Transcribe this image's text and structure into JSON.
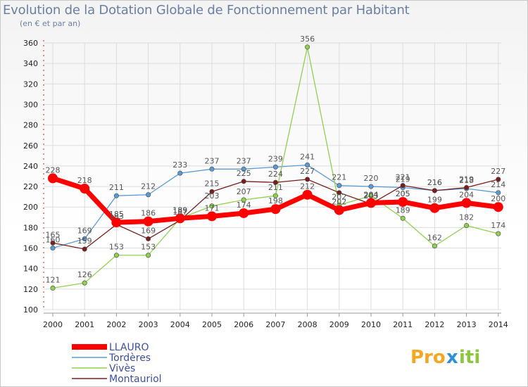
{
  "chart_data": {
    "type": "line",
    "title": "Evolution de la Dotation Globale de Fonctionnement par Habitant",
    "subtitle": "(en € et par an)",
    "x": [
      "2000",
      "2001",
      "2002",
      "2003",
      "2004",
      "2005",
      "2006",
      "2007",
      "2008",
      "2009",
      "2010",
      "2011",
      "2012",
      "2013",
      "2014"
    ],
    "ylim": [
      100,
      360
    ],
    "yticks": [
      100,
      120,
      140,
      160,
      180,
      200,
      220,
      240,
      260,
      280,
      300,
      320,
      340,
      360
    ],
    "series": [
      {
        "name": "LLAURO",
        "color": "#ff0000",
        "values": [
          228,
          218,
          185,
          186,
          189,
          191,
          194,
          198,
          212,
          197,
          204,
          205,
          199,
          204,
          200
        ]
      },
      {
        "name": "Tordères",
        "color": "#5b9bd5",
        "values": [
          160,
          169,
          211,
          212,
          233,
          237,
          237,
          239,
          241,
          221,
          220,
          219,
          216,
          218,
          214
        ]
      },
      {
        "name": "Vivès",
        "color": "#8fd14f",
        "values": [
          121,
          126,
          153,
          153,
          189,
          201,
          207,
          211,
          356,
          202,
          211,
          189,
          162,
          182,
          174
        ]
      },
      {
        "name": "Montauriol",
        "color": "#7b1c1c",
        "values": [
          165,
          159,
          183,
          169,
          187,
          215,
          225,
          224,
          227,
          214,
          203,
          221,
          216,
          219,
          227
        ]
      }
    ],
    "label_texts": {
      "LLAURO": [
        "228",
        "218",
        "185",
        "186",
        "189",
        "",
        "",
        "198",
        "212",
        "",
        "204",
        "205",
        "199",
        "204",
        "200"
      ],
      "Tordères": [
        "160",
        "169",
        "211",
        "212",
        "233",
        "237",
        "237",
        "239",
        "241",
        "221",
        "220",
        "219",
        "216",
        "218",
        "214"
      ],
      "Vivès": [
        "121",
        "126",
        "153",
        "153",
        "189",
        "",
        "",
        "",
        "356",
        "202",
        "",
        "189",
        "162",
        "182",
        "174"
      ],
      "Montauriol": [
        "165",
        "159",
        "183",
        "169",
        "187",
        "215",
        "225",
        "224",
        "227",
        "",
        "203",
        "221",
        "216",
        "219",
        "227"
      ]
    },
    "extra_labels": [
      "203",
      "171",
      "174",
      "205",
      "202",
      "207",
      "211",
      "204"
    ],
    "legend_position": "bottom-left"
  },
  "logo": {
    "text_pro": "Pro",
    "text_x": "x",
    "text_iti": "iti"
  }
}
